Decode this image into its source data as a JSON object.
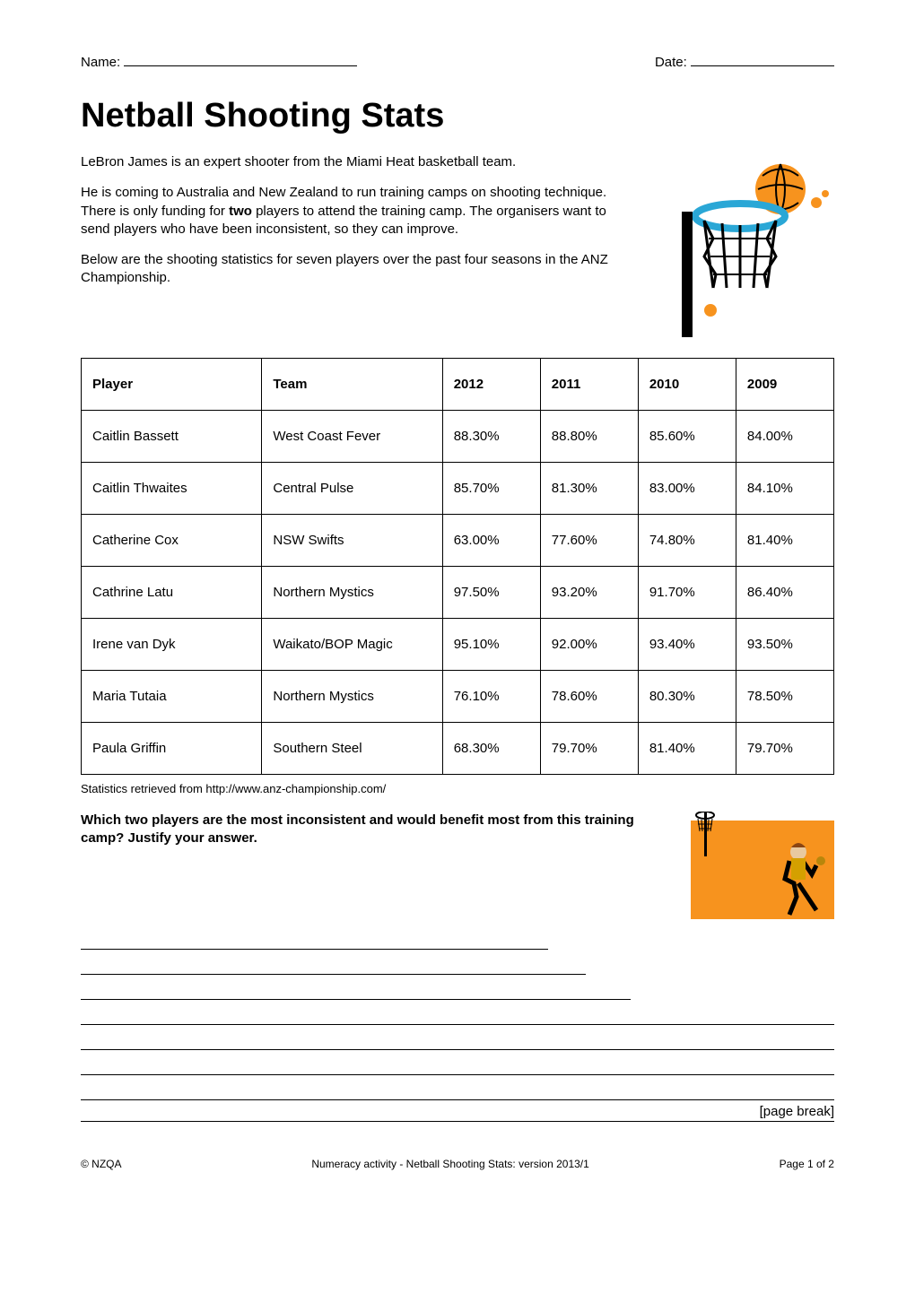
{
  "header": {
    "name_label": "Name:",
    "date_label": "Date:"
  },
  "title": "Netball Shooting Stats",
  "intro": {
    "p1": "LeBron James is an expert shooter from the Miami Heat basketball team.",
    "p2a": "He is coming to Australia and New Zealand to run training camps on shooting technique.  There is only funding for ",
    "p2b": "two",
    "p2c": " players to attend the training camp. The organisers want to send players who have been inconsistent, so they can improve."
  },
  "below": "Below are the shooting statistics for seven players over the past four seasons in the ANZ Championship.",
  "table": {
    "columns": [
      "Player",
      "Team",
      "2012",
      "2011",
      "2010",
      "2009"
    ],
    "rows": [
      [
        "Caitlin Bassett",
        "West Coast Fever",
        "88.30%",
        "88.80%",
        "85.60%",
        "84.00%"
      ],
      [
        "Caitlin Thwaites",
        "Central Pulse",
        "85.70%",
        "81.30%",
        "83.00%",
        "84.10%"
      ],
      [
        "Catherine Cox",
        "NSW Swifts",
        "63.00%",
        "77.60%",
        "74.80%",
        "81.40%"
      ],
      [
        "Cathrine Latu",
        "Northern Mystics",
        "97.50%",
        "93.20%",
        "91.70%",
        "86.40%"
      ],
      [
        "Irene van Dyk",
        "Waikato/BOP Magic",
        "95.10%",
        "92.00%",
        "93.40%",
        "93.50%"
      ],
      [
        "Maria Tutaia",
        "Northern Mystics",
        "76.10%",
        "78.60%",
        "80.30%",
        "78.50%"
      ],
      [
        "Paula Griffin",
        "Southern Steel",
        "68.30%",
        "79.70%",
        "81.40%",
        "79.70%"
      ]
    ],
    "col_widths": [
      "24%",
      "24%",
      "13%",
      "13%",
      "13%",
      "13%"
    ]
  },
  "cite": "Statistics retrieved from http://www.anz-championship.com/",
  "question": "Which two players are the most inconsistent and would benefit most from this training camp?  Justify your answer.",
  "page_break": "[page break]",
  "footer": {
    "left": "© NZQA",
    "center": "Numeracy activity - Netball Shooting Stats: version 2013/1",
    "right": "Page 1 of 2"
  },
  "icons": {
    "netball_hoop": {
      "ball_color": "#f7931e",
      "ring_color": "#2aa7d6",
      "net_color": "#000000",
      "post_color": "#000000",
      "dot_color": "#f7931e"
    },
    "player": {
      "court_color": "#f7931e",
      "hoop_color": "#000000",
      "player_color": "#000000"
    }
  }
}
